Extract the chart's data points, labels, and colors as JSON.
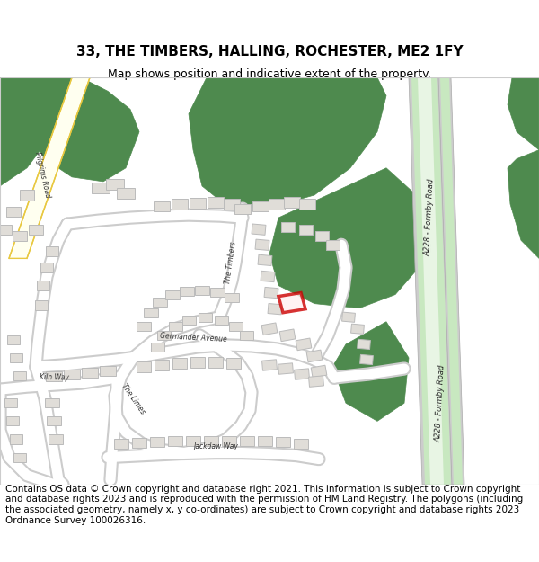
{
  "title": "33, THE TIMBERS, HALLING, ROCHESTER, ME2 1FY",
  "subtitle": "Map shows position and indicative extent of the property.",
  "footer": "Contains OS data © Crown copyright and database right 2021. This information is subject to Crown copyright and database rights 2023 and is reproduced with the permission of HM Land Registry. The polygons (including the associated geometry, namely x, y co-ordinates) are subject to Crown copyright and database rights 2023 Ordnance Survey 100026316.",
  "bg_color": "#ffffff",
  "map_bg": "#ffffff",
  "green_dark": "#4e8a4e",
  "green_light": "#b8d9b0",
  "road_yellow_fill": "#fffff0",
  "road_yellow_edge": "#e8c840",
  "road_grey_fill": "#e8e8e8",
  "road_grey_edge": "#cccccc",
  "a228_fill": "#c8e8c0",
  "a228_edge": "#888888",
  "a228_inner": "#e8f5e4",
  "building_fill": "#e0ddd8",
  "building_edge": "#bbbbbb",
  "highlight_red": "#cc0000",
  "title_fontsize": 11,
  "subtitle_fontsize": 9,
  "footer_fontsize": 7.5
}
